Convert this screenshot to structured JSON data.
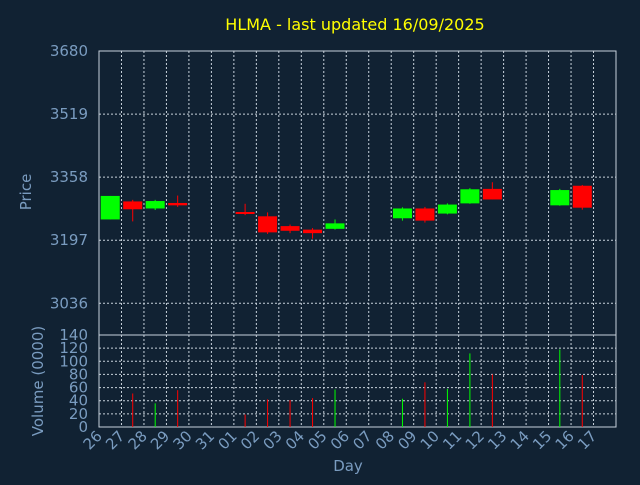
{
  "chart_data": {
    "type": "candlestick",
    "title": "HLMA - last updated 16/09/2025",
    "xlabel": "Day",
    "price_panel": {
      "ylabel": "Price",
      "ylim": [
        2955,
        3680
      ],
      "yticks": [
        "3680",
        "3519",
        "3358",
        "3197",
        "3036"
      ],
      "grid": true
    },
    "volume_panel": {
      "ylabel": "Volume (0000)",
      "ylim": [
        0,
        140
      ],
      "yticks": [
        "140",
        "120",
        "100",
        "80",
        "60",
        "40",
        "20",
        "0"
      ],
      "grid": true
    },
    "x_tick_labels": [
      "26",
      "27",
      "28",
      "29",
      "30",
      "31",
      "01",
      "02",
      "03",
      "04",
      "05",
      "06",
      "07",
      "08",
      "09",
      "10",
      "11",
      "12",
      "13",
      "14",
      "15",
      "16",
      "17"
    ],
    "colors": {
      "up": "#00ff00",
      "down": "#ff0000",
      "background": "#112233",
      "grid": "#c8d2dc",
      "title": "#ffff00",
      "axis_text": "#7a9cc0"
    },
    "candles": [
      {
        "slot": 0,
        "open": 3250,
        "high": 3310,
        "low": 3250,
        "close": 3310
      },
      {
        "slot": 1,
        "open": 3296,
        "high": 3300,
        "low": 3245,
        "close": 3276
      },
      {
        "slot": 2,
        "open": 3278,
        "high": 3300,
        "low": 3274,
        "close": 3297
      },
      {
        "slot": 3,
        "open": 3292,
        "high": 3311,
        "low": 3282,
        "close": 3286
      },
      {
        "slot": 6,
        "open": 3269,
        "high": 3290,
        "low": 3261,
        "close": 3265
      },
      {
        "slot": 7,
        "open": 3258,
        "high": 3268,
        "low": 3213,
        "close": 3217
      },
      {
        "slot": 8,
        "open": 3233,
        "high": 3237,
        "low": 3215,
        "close": 3221
      },
      {
        "slot": 9,
        "open": 3224,
        "high": 3228,
        "low": 3201,
        "close": 3215
      },
      {
        "slot": 10,
        "open": 3226,
        "high": 3250,
        "low": 3224,
        "close": 3240
      },
      {
        "slot": 13,
        "open": 3253,
        "high": 3281,
        "low": 3247,
        "close": 3278
      },
      {
        "slot": 14,
        "open": 3278,
        "high": 3282,
        "low": 3242,
        "close": 3247
      },
      {
        "slot": 15,
        "open": 3265,
        "high": 3291,
        "low": 3263,
        "close": 3288
      },
      {
        "slot": 16,
        "open": 3291,
        "high": 3330,
        "low": 3290,
        "close": 3327
      },
      {
        "slot": 17,
        "open": 3328,
        "high": 3345,
        "low": 3301,
        "close": 3301
      },
      {
        "slot": 20,
        "open": 3286,
        "high": 3328,
        "low": 3285,
        "close": 3325
      },
      {
        "slot": 21,
        "open": 3336,
        "high": 3338,
        "low": 3275,
        "close": 3280
      }
    ],
    "volumes": [
      {
        "slot": 1,
        "value": 51,
        "dir": "down"
      },
      {
        "slot": 2,
        "value": 36,
        "dir": "up"
      },
      {
        "slot": 3,
        "value": 56,
        "dir": "down"
      },
      {
        "slot": 6,
        "value": 19,
        "dir": "down"
      },
      {
        "slot": 7,
        "value": 42,
        "dir": "down"
      },
      {
        "slot": 8,
        "value": 41,
        "dir": "down"
      },
      {
        "slot": 9,
        "value": 44,
        "dir": "down"
      },
      {
        "slot": 10,
        "value": 57,
        "dir": "up"
      },
      {
        "slot": 13,
        "value": 43,
        "dir": "up"
      },
      {
        "slot": 14,
        "value": 68,
        "dir": "down"
      },
      {
        "slot": 15,
        "value": 58,
        "dir": "up"
      },
      {
        "slot": 16,
        "value": 112,
        "dir": "up"
      },
      {
        "slot": 17,
        "value": 80,
        "dir": "down"
      },
      {
        "slot": 20,
        "value": 118,
        "dir": "up"
      },
      {
        "slot": 21,
        "value": 79,
        "dir": "down"
      }
    ]
  }
}
